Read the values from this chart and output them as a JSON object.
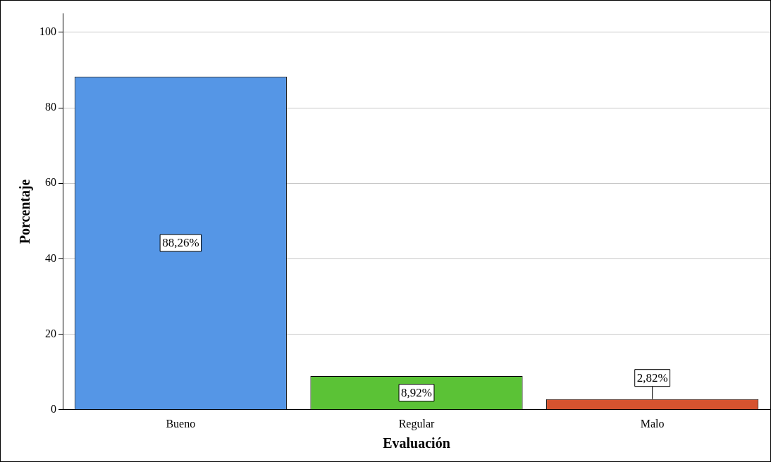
{
  "chart_data": {
    "type": "bar",
    "xlabel": "Evaluación",
    "ylabel": "Porcentaje",
    "categories": [
      "Bueno",
      "Regular",
      "Malo"
    ],
    "values": [
      88.26,
      8.92,
      2.82
    ],
    "colors": [
      "#5596e6",
      "#5bc236",
      "#d6532f"
    ],
    "value_labels": [
      "88,26%",
      "8,92%",
      "2,82%"
    ],
    "ylim": [
      0,
      105
    ],
    "yticks": [
      0,
      20,
      40,
      60,
      80,
      100
    ],
    "grid": "y",
    "legend": false
  }
}
